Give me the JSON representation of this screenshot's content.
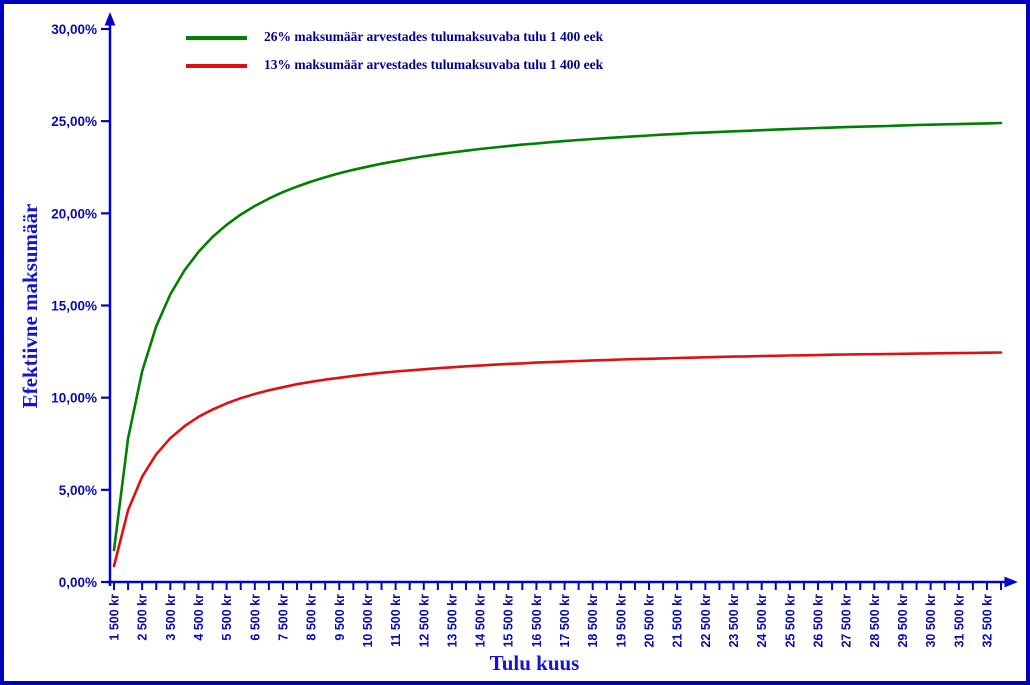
{
  "frame": {
    "border_color": "#0000bd",
    "background_color": "#ffffff"
  },
  "chart_data": {
    "type": "line",
    "title": "",
    "xlabel": "Tulu kuus",
    "ylabel": "Efektiivne maksumäär",
    "ylim": [
      0,
      30
    ],
    "y_tick_labels": [
      "0,00%",
      "5,00%",
      "10,00%",
      "15,00%",
      "20,00%",
      "25,00%",
      "30,00%"
    ],
    "x_tick_step": 500,
    "x_label_step": 1000,
    "grid": false,
    "legend_position": "top-left-inside",
    "axis_color": "#0202c8",
    "tick_label_color": "#0a0ab4",
    "axis_title_color": "#1414d2",
    "legend_text_color": "#000091",
    "x": [
      1500,
      2000,
      2500,
      3000,
      3500,
      4000,
      4500,
      5000,
      5500,
      6000,
      6500,
      7000,
      7500,
      8000,
      8500,
      9000,
      9500,
      10000,
      10500,
      11000,
      11500,
      12000,
      12500,
      13000,
      13500,
      14000,
      14500,
      15000,
      15500,
      16000,
      16500,
      17000,
      17500,
      18000,
      18500,
      19000,
      19500,
      20000,
      20500,
      21000,
      21500,
      22000,
      22500,
      23000,
      23500,
      24000,
      24500,
      25000,
      25500,
      26000,
      26500,
      27000,
      27500,
      28000,
      28500,
      29000,
      29500,
      30000,
      30500,
      31000,
      31500,
      32000,
      32500,
      33000
    ],
    "x_tick_labels": [
      "1 500 kr",
      "2 500 kr",
      "3 500 kr",
      "4 500 kr",
      "5 500 kr",
      "6 500 kr",
      "7 500 kr",
      "8 500 kr",
      "9 500 kr",
      "10 500 kr",
      "11 500 kr",
      "12 500 kr",
      "13 500 kr",
      "14 500 kr",
      "15 500 kr",
      "16 500 kr",
      "17 500 kr",
      "18 500 kr",
      "19 500 kr",
      "20 500 kr",
      "21 500 kr",
      "22 500 kr",
      "23 500 kr",
      "24 500 kr",
      "25 500 kr",
      "26 500 kr",
      "27 500 kr",
      "28 500 kr",
      "29 500 kr",
      "30 500 kr",
      "31 500 kr",
      "32 500 kr"
    ],
    "series": [
      {
        "name": "26% maksumäär arvestades tulumaksuvaba tulu 1 400 eek",
        "color": "#008000",
        "values": [
          1.73,
          7.8,
          11.44,
          13.87,
          15.6,
          16.9,
          17.91,
          18.72,
          19.38,
          19.93,
          20.4,
          20.8,
          21.15,
          21.45,
          21.72,
          21.96,
          22.17,
          22.36,
          22.53,
          22.69,
          22.83,
          22.97,
          23.09,
          23.2,
          23.3,
          23.4,
          23.49,
          23.57,
          23.65,
          23.73,
          23.79,
          23.86,
          23.92,
          23.98,
          24.03,
          24.08,
          24.13,
          24.18,
          24.22,
          24.27,
          24.31,
          24.35,
          24.38,
          24.42,
          24.45,
          24.48,
          24.51,
          24.54,
          24.57,
          24.6,
          24.63,
          24.65,
          24.68,
          24.7,
          24.72,
          24.74,
          24.77,
          24.79,
          24.81,
          24.83,
          24.84,
          24.86,
          24.88,
          24.9
        ]
      },
      {
        "name": "13% maksumäär arvestades tulumaksuvaba tulu 1 400 eek",
        "color": "#dd1111",
        "values": [
          0.87,
          3.9,
          5.72,
          6.93,
          7.8,
          8.45,
          8.96,
          9.36,
          9.69,
          9.97,
          10.2,
          10.4,
          10.57,
          10.73,
          10.86,
          10.98,
          11.08,
          11.18,
          11.27,
          11.35,
          11.42,
          11.48,
          11.54,
          11.6,
          11.65,
          11.7,
          11.74,
          11.79,
          11.83,
          11.86,
          11.9,
          11.93,
          11.96,
          11.99,
          12.02,
          12.04,
          12.07,
          12.09,
          12.11,
          12.13,
          12.15,
          12.17,
          12.19,
          12.21,
          12.23,
          12.24,
          12.26,
          12.27,
          12.29,
          12.3,
          12.31,
          12.33,
          12.34,
          12.35,
          12.36,
          12.37,
          12.38,
          12.39,
          12.4,
          12.41,
          12.42,
          12.43,
          12.44,
          12.45
        ]
      }
    ]
  }
}
